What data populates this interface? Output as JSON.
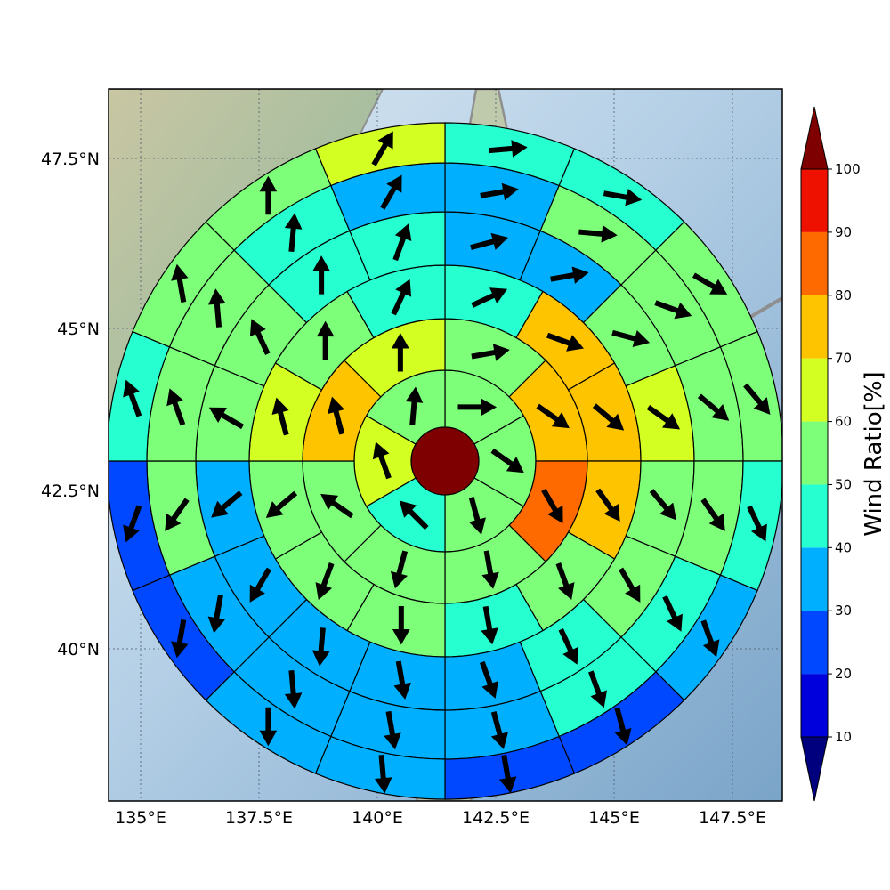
{
  "chart_data": {
    "type": "heatmap",
    "subtype": "polar-sector wind ratio map with direction arrows",
    "title": "",
    "map": {
      "x_range_lon": [
        134.35,
        148.65
      ],
      "y_range_lat": [
        37.45,
        48.5
      ],
      "x_ticks": [
        {
          "value": 135,
          "label": "135°E"
        },
        {
          "value": 137.5,
          "label": "137.5°E"
        },
        {
          "value": 140,
          "label": "140°E"
        },
        {
          "value": 142.5,
          "label": "142.5°E"
        },
        {
          "value": 145,
          "label": "145°E"
        },
        {
          "value": 147.5,
          "label": "147.5°E"
        }
      ],
      "y_ticks": [
        {
          "value": 40,
          "label": "40°N"
        },
        {
          "value": 42.5,
          "label": "42.5°N"
        },
        {
          "value": 45,
          "label": "45°N"
        },
        {
          "value": 47.5,
          "label": "47.5°N"
        }
      ],
      "grid": true
    },
    "center_cell": {
      "value": 100
    },
    "rings": [
      {
        "ring": 1,
        "sectors": 6,
        "start_bearing_deg": 0,
        "values": [
          55,
          57,
          57,
          45,
          60,
          55
        ],
        "arrow_bearings_deg": [
          90,
          125,
          165,
          315,
          340,
          5
        ]
      },
      {
        "ring": 2,
        "sectors": 8,
        "start_bearing_deg": 0,
        "values": [
          55,
          75,
          85,
          55,
          55,
          55,
          75,
          65
        ],
        "arrow_bearings_deg": [
          80,
          125,
          150,
          170,
          195,
          305,
          345,
          0
        ]
      },
      {
        "ring": 3,
        "sectors": 12,
        "start_bearing_deg": 0,
        "values": [
          45,
          75,
          75,
          75,
          55,
          45,
          55,
          55,
          55,
          65,
          55,
          45
        ],
        "arrow_bearings_deg": [
          65,
          110,
          130,
          145,
          160,
          170,
          180,
          200,
          230,
          345,
          0,
          25
        ],
        "note": "values are sector colour bands; clockwise from north"
      },
      {
        "ring": 4,
        "sectors": 16,
        "start_bearing_deg": 0,
        "values": [
          35,
          35,
          55,
          65,
          55,
          55,
          45,
          35,
          35,
          35,
          35,
          35,
          55,
          55,
          45,
          45
        ],
        "arrow_bearings_deg": [
          75,
          80,
          105,
          125,
          140,
          150,
          155,
          160,
          170,
          185,
          210,
          230,
          300,
          335,
          0,
          20
        ]
      },
      {
        "ring": 5,
        "sectors": 16,
        "start_bearing_deg": 0,
        "values": [
          35,
          55,
          55,
          55,
          55,
          45,
          45,
          35,
          35,
          35,
          35,
          55,
          55,
          55,
          45,
          35
        ],
        "arrow_bearings_deg": [
          80,
          95,
          110,
          130,
          145,
          155,
          160,
          165,
          170,
          175,
          190,
          215,
          340,
          355,
          5,
          30
        ]
      },
      {
        "ring": 6,
        "sectors": 16,
        "start_bearing_deg": 0,
        "values": [
          45,
          45,
          55,
          55,
          45,
          35,
          25,
          25,
          35,
          35,
          25,
          25,
          45,
          55,
          55,
          65
        ],
        "arrow_bearings_deg": [
          85,
          100,
          120,
          140,
          155,
          160,
          165,
          170,
          175,
          180,
          190,
          200,
          340,
          350,
          0,
          30
        ]
      }
    ],
    "colorbar": {
      "title": "Wind Ratio[%]",
      "ticks": [
        10,
        20,
        30,
        40,
        50,
        60,
        70,
        80,
        90,
        100
      ],
      "levels": [
        0,
        10,
        20,
        30,
        40,
        50,
        60,
        70,
        80,
        90,
        100
      ],
      "colors": {
        "under": "#00007f",
        "bands": [
          "#0000dd",
          "#0048ff",
          "#00b0ff",
          "#26ffd0",
          "#7dff7a",
          "#d4ff22",
          "#ffc400",
          "#ff6a00",
          "#ee1100"
        ],
        "over": "#7f0000"
      }
    }
  }
}
